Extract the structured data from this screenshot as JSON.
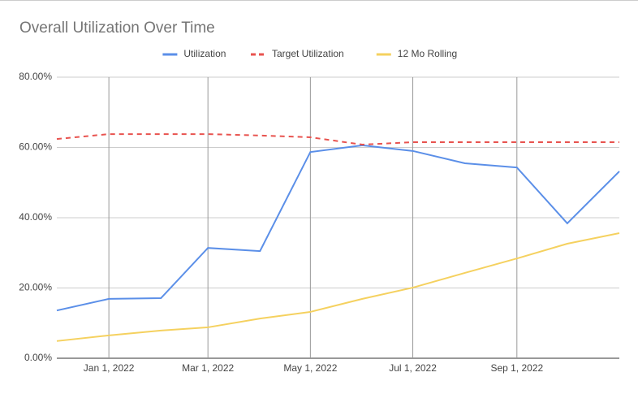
{
  "chart_data": {
    "type": "line",
    "title": "Overall Utilization Over Time",
    "x": [
      "2021-12-01",
      "2022-01-01",
      "2022-02-01",
      "2022-03-01",
      "2022-04-01",
      "2022-05-01",
      "2022-06-01",
      "2022-07-01",
      "2022-08-01",
      "2022-09-01",
      "2022-10-01",
      "2022-11-01"
    ],
    "xlim": [
      "2021-12-01",
      "2022-11-01"
    ],
    "xticks": [
      {
        "value": "2022-01-01",
        "label": "Jan 1, 2022"
      },
      {
        "value": "2022-03-01",
        "label": "Mar 1, 2022"
      },
      {
        "value": "2022-05-01",
        "label": "May 1, 2022"
      },
      {
        "value": "2022-07-01",
        "label": "Jul 1, 2022"
      },
      {
        "value": "2022-09-01",
        "label": "Sep 1, 2022"
      }
    ],
    "ylim": [
      0,
      80
    ],
    "yticks": [
      {
        "value": 0,
        "label": "0.00%"
      },
      {
        "value": 20,
        "label": "20.00%"
      },
      {
        "value": 40,
        "label": "40.00%"
      },
      {
        "value": 60,
        "label": "60.00%"
      },
      {
        "value": 80,
        "label": "80.00%"
      }
    ],
    "grid": true,
    "legend": "top",
    "series": [
      {
        "name": "Utilization",
        "color": "#5b8fe8",
        "dash": false,
        "values": [
          13.6,
          16.9,
          17.1,
          31.4,
          30.5,
          58.7,
          60.6,
          59.0,
          55.5,
          54.3,
          38.4,
          53.2
        ]
      },
      {
        "name": "Target Utilization",
        "color": "#e8534f",
        "dash": true,
        "values": [
          62.4,
          63.8,
          63.8,
          63.8,
          63.4,
          62.9,
          60.8,
          61.5,
          61.5,
          61.5,
          61.5,
          61.5
        ]
      },
      {
        "name": "12 Mo Rolling",
        "color": "#f5d15f",
        "dash": false,
        "values": [
          4.9,
          6.5,
          7.9,
          8.8,
          11.3,
          13.2,
          16.9,
          20.1,
          24.3,
          28.4,
          32.6,
          35.6
        ]
      }
    ]
  }
}
